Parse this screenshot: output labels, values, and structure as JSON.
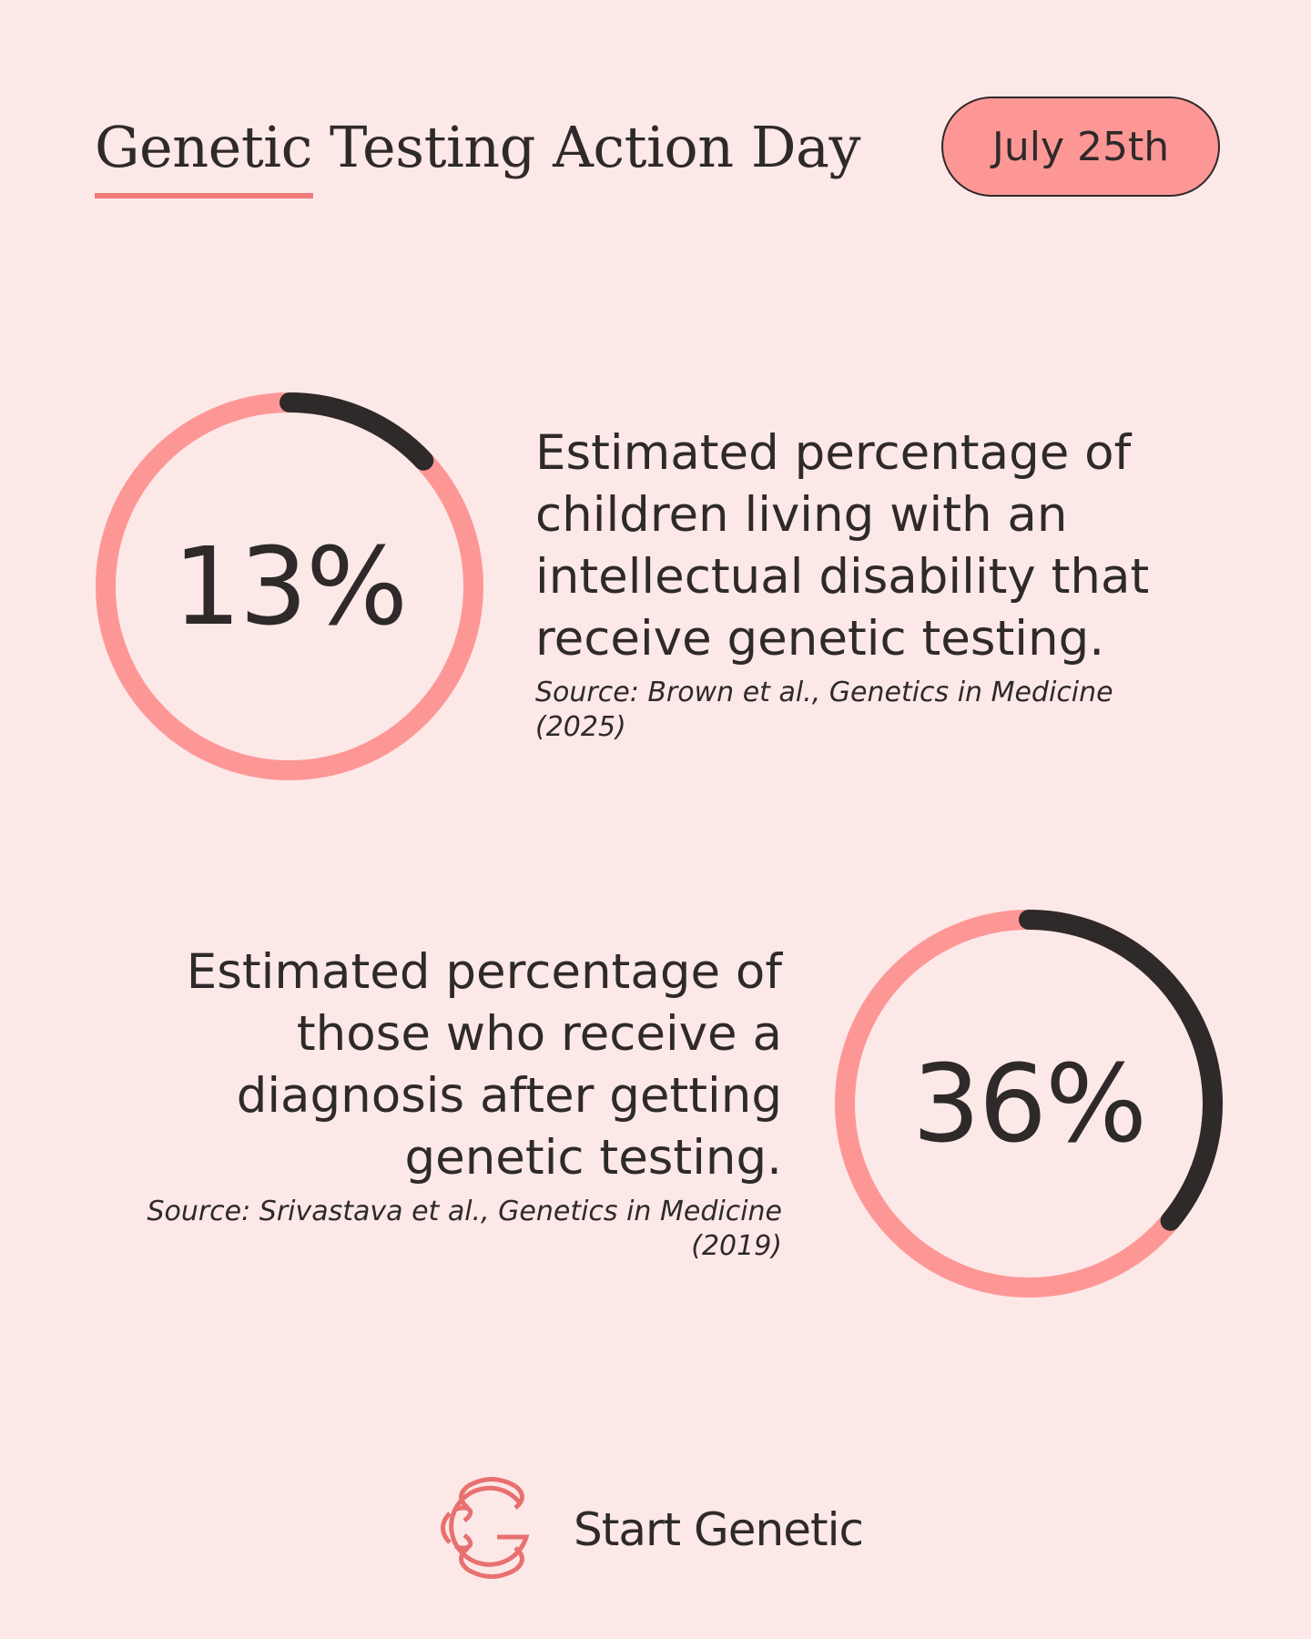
{
  "header": {
    "title": "Genetic Testing Action Day",
    "date_badge": "July 25th"
  },
  "colors": {
    "background": "#fde8e8",
    "accent": "#fd9796",
    "dark": "#2e2a29"
  },
  "chart_data": [
    {
      "type": "pie",
      "value": 13,
      "label": "13%",
      "description": "Estimated percentage of children living with an intellectual disability that receive genetic testing.",
      "source_line1": "Source: Brown et al., Genetics in Medicine",
      "source_line2": "(2025)"
    },
    {
      "type": "pie",
      "value": 36,
      "label": "36%",
      "description": "Estimated percentage of those who receive a diagnosis after getting genetic testing.",
      "source_line1": "Source: Srivastava et al., Genetics in Medicine",
      "source_line2": "(2019)"
    }
  ],
  "brand": {
    "name": "Start Genetic",
    "logo_icon": "start-genetic-logo-icon"
  }
}
